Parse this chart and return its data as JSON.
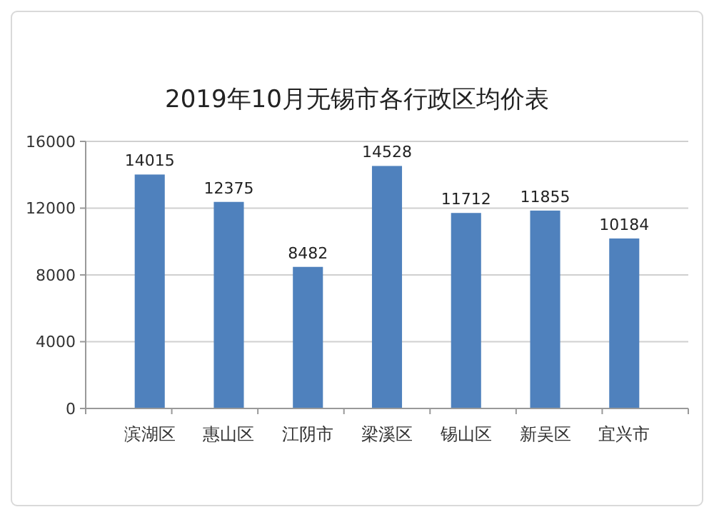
{
  "chart_data": {
    "type": "bar",
    "title": "2019年10月无锡市各行政区均价表",
    "categories": [
      "滨湖区",
      "惠山区",
      "江阴市",
      "梁溪区",
      "锡山区",
      "新吴区",
      "宜兴市"
    ],
    "values": [
      14015,
      12375,
      8482,
      14528,
      11712,
      11855,
      10184
    ],
    "color": "#4f81bd",
    "ylim": [
      0,
      16000
    ],
    "yticks": [
      0,
      4000,
      8000,
      12000,
      16000
    ],
    "grid": "y",
    "data_labels": true
  }
}
